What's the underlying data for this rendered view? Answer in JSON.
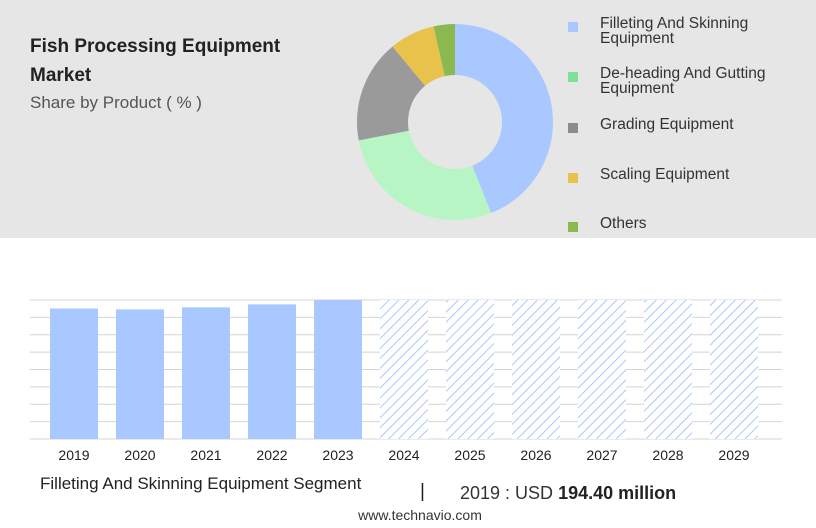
{
  "header": {
    "title": "Fish Processing Equipment Market",
    "subtitle": "Share by Product ( % )"
  },
  "legend": {
    "items": [
      {
        "label": "Filleting And Skinning Equipment",
        "color": "#a8c8ff"
      },
      {
        "label": "De-heading And Gutting Equipment",
        "color": "#7fe09a"
      },
      {
        "label": "Grading Equipment",
        "color": "#8c8c8c"
      },
      {
        "label": "Scaling Equipment",
        "color": "#e8c24a"
      },
      {
        "label": "Others",
        "color": "#8cb850"
      }
    ]
  },
  "footer": {
    "segment": "Filleting And Skinning Equipment Segment",
    "separator": "|",
    "value_prefix": "2019 : USD",
    "value_bold": "194.40 million",
    "url": "www.technavio.com"
  },
  "chart_data": [
    {
      "type": "pie",
      "categories": [
        "Filleting And Skinning Equipment",
        "De-heading And Gutting Equipment",
        "Grading Equipment",
        "Scaling Equipment",
        "Others"
      ],
      "values": [
        44,
        28,
        17,
        7.5,
        3.5
      ],
      "colors": [
        "#a8c8ff",
        "#b8f5c4",
        "#9a9a9a",
        "#e8c24a",
        "#8cb850"
      ],
      "donut": true
    },
    {
      "type": "bar",
      "categories": [
        "2019",
        "2020",
        "2021",
        "2022",
        "2023",
        "2024",
        "2025",
        "2026",
        "2027",
        "2028",
        "2029"
      ],
      "values": [
        194.4,
        193.0,
        196.0,
        200.5,
        207.0,
        null,
        null,
        null,
        null,
        null,
        null
      ],
      "forecast_categories": [
        "2024",
        "2025",
        "2026",
        "2027",
        "2028",
        "2029"
      ],
      "color": "#a8c8ff",
      "grid": true,
      "ylim": [
        0,
        207
      ]
    }
  ]
}
